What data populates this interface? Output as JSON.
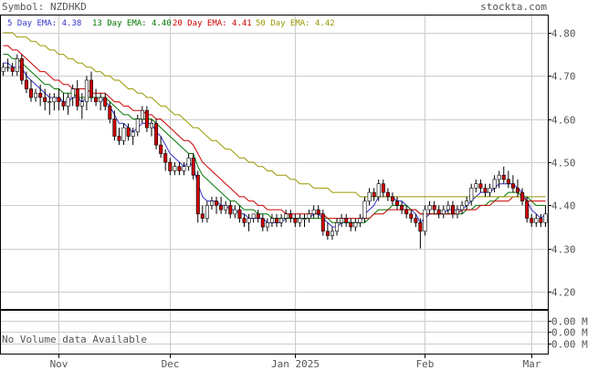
{
  "header": {
    "symbol_label": "Symbol: NZDHKD",
    "site": "stockta.com"
  },
  "legend": [
    {
      "label": "5 Day EMA: 4.38",
      "color": "#3333cc"
    },
    {
      "label": "13 Day EMA: 4.40",
      "color": "#007700"
    },
    {
      "label": "20 Day EMA: 4.41",
      "color": "#cc0000"
    },
    {
      "label": "50 Day EMA: 4.42",
      "color": "#999900"
    }
  ],
  "volume": {
    "message": "No Volume data Available",
    "ticks": [
      "0.00 M",
      "0.00 M",
      "0.00 M"
    ]
  },
  "chart_data": {
    "type": "candlestick",
    "title": "NZDHKD",
    "y_ticks": [
      4.2,
      4.3,
      4.4,
      4.5,
      4.6,
      4.7,
      4.8
    ],
    "ylim": [
      4.16,
      4.84
    ],
    "x_labels": [
      "Nov",
      "Dec",
      "Jan 2025",
      "Feb",
      "Mar"
    ],
    "x_label_index": [
      12,
      36,
      63,
      91,
      114
    ],
    "candle_count": 118,
    "colors": {
      "up": "#ffffff",
      "down": "#cc0000",
      "wick": "#000000"
    },
    "candles": [
      [
        4.71,
        4.73,
        4.7,
        4.72
      ],
      [
        4.72,
        4.74,
        4.71,
        4.72
      ],
      [
        4.72,
        4.73,
        4.7,
        4.71
      ],
      [
        4.71,
        4.75,
        4.7,
        4.74
      ],
      [
        4.74,
        4.75,
        4.68,
        4.69
      ],
      [
        4.69,
        4.71,
        4.66,
        4.67
      ],
      [
        4.67,
        4.69,
        4.64,
        4.65
      ],
      [
        4.65,
        4.67,
        4.64,
        4.66
      ],
      [
        4.66,
        4.68,
        4.63,
        4.65
      ],
      [
        4.65,
        4.67,
        4.62,
        4.64
      ],
      [
        4.64,
        4.66,
        4.61,
        4.64
      ],
      [
        4.64,
        4.66,
        4.62,
        4.65
      ],
      [
        4.65,
        4.67,
        4.62,
        4.64
      ],
      [
        4.64,
        4.66,
        4.62,
        4.63
      ],
      [
        4.63,
        4.66,
        4.61,
        4.65
      ],
      [
        4.65,
        4.68,
        4.63,
        4.67
      ],
      [
        4.67,
        4.69,
        4.62,
        4.63
      ],
      [
        4.63,
        4.66,
        4.6,
        4.64
      ],
      [
        4.64,
        4.7,
        4.62,
        4.69
      ],
      [
        4.69,
        4.71,
        4.64,
        4.65
      ],
      [
        4.65,
        4.67,
        4.63,
        4.64
      ],
      [
        4.64,
        4.66,
        4.62,
        4.65
      ],
      [
        4.65,
        4.66,
        4.62,
        4.63
      ],
      [
        4.63,
        4.64,
        4.59,
        4.6
      ],
      [
        4.6,
        4.62,
        4.55,
        4.56
      ],
      [
        4.56,
        4.58,
        4.54,
        4.55
      ],
      [
        4.55,
        4.59,
        4.54,
        4.58
      ],
      [
        4.58,
        4.59,
        4.55,
        4.56
      ],
      [
        4.56,
        4.58,
        4.54,
        4.57
      ],
      [
        4.57,
        4.61,
        4.56,
        4.6
      ],
      [
        4.6,
        4.63,
        4.59,
        4.62
      ],
      [
        4.62,
        4.63,
        4.57,
        4.58
      ],
      [
        4.58,
        4.6,
        4.56,
        4.59
      ],
      [
        4.59,
        4.6,
        4.53,
        4.54
      ],
      [
        4.54,
        4.56,
        4.51,
        4.52
      ],
      [
        4.52,
        4.53,
        4.48,
        4.5
      ],
      [
        4.5,
        4.51,
        4.47,
        4.48
      ],
      [
        4.48,
        4.5,
        4.47,
        4.49
      ],
      [
        4.49,
        4.5,
        4.47,
        4.48
      ],
      [
        4.48,
        4.5,
        4.47,
        4.49
      ],
      [
        4.49,
        4.52,
        4.48,
        4.51
      ],
      [
        4.51,
        4.52,
        4.46,
        4.47
      ],
      [
        4.47,
        4.48,
        4.36,
        4.38
      ],
      [
        4.38,
        4.4,
        4.36,
        4.37
      ],
      [
        4.37,
        4.41,
        4.36,
        4.4
      ],
      [
        4.4,
        4.42,
        4.39,
        4.41
      ],
      [
        4.41,
        4.42,
        4.38,
        4.4
      ],
      [
        4.4,
        4.42,
        4.38,
        4.39
      ],
      [
        4.39,
        4.41,
        4.38,
        4.4
      ],
      [
        4.4,
        4.41,
        4.37,
        4.38
      ],
      [
        4.38,
        4.4,
        4.37,
        4.39
      ],
      [
        4.39,
        4.4,
        4.36,
        4.37
      ],
      [
        4.37,
        4.38,
        4.35,
        4.36
      ],
      [
        4.36,
        4.38,
        4.34,
        4.37
      ],
      [
        4.37,
        4.38,
        4.36,
        4.38
      ],
      [
        4.38,
        4.39,
        4.36,
        4.37
      ],
      [
        4.37,
        4.38,
        4.34,
        4.35
      ],
      [
        4.35,
        4.37,
        4.34,
        4.36
      ],
      [
        4.36,
        4.38,
        4.35,
        4.37
      ],
      [
        4.37,
        4.38,
        4.35,
        4.36
      ],
      [
        4.36,
        4.38,
        4.35,
        4.37
      ],
      [
        4.37,
        4.39,
        4.36,
        4.38
      ],
      [
        4.38,
        4.39,
        4.36,
        4.37
      ],
      [
        4.37,
        4.38,
        4.35,
        4.36
      ],
      [
        4.36,
        4.38,
        4.35,
        4.37
      ],
      [
        4.37,
        4.38,
        4.35,
        4.37
      ],
      [
        4.37,
        4.39,
        4.36,
        4.38
      ],
      [
        4.38,
        4.4,
        4.37,
        4.39
      ],
      [
        4.39,
        4.4,
        4.37,
        4.38
      ],
      [
        4.38,
        4.39,
        4.33,
        4.34
      ],
      [
        4.34,
        4.36,
        4.32,
        4.33
      ],
      [
        4.33,
        4.35,
        4.32,
        4.34
      ],
      [
        4.34,
        4.37,
        4.33,
        4.36
      ],
      [
        4.36,
        4.38,
        4.35,
        4.37
      ],
      [
        4.37,
        4.38,
        4.35,
        4.36
      ],
      [
        4.36,
        4.37,
        4.34,
        4.35
      ],
      [
        4.35,
        4.37,
        4.34,
        4.36
      ],
      [
        4.36,
        4.38,
        4.35,
        4.37
      ],
      [
        4.37,
        4.42,
        4.36,
        4.41
      ],
      [
        4.41,
        4.44,
        4.4,
        4.43
      ],
      [
        4.43,
        4.44,
        4.41,
        4.42
      ],
      [
        4.42,
        4.46,
        4.41,
        4.45
      ],
      [
        4.45,
        4.46,
        4.42,
        4.43
      ],
      [
        4.43,
        4.44,
        4.41,
        4.42
      ],
      [
        4.42,
        4.43,
        4.4,
        4.41
      ],
      [
        4.41,
        4.42,
        4.39,
        4.4
      ],
      [
        4.4,
        4.41,
        4.38,
        4.39
      ],
      [
        4.39,
        4.4,
        4.37,
        4.38
      ],
      [
        4.38,
        4.39,
        4.36,
        4.37
      ],
      [
        4.37,
        4.38,
        4.35,
        4.36
      ],
      [
        4.36,
        4.37,
        4.3,
        4.34
      ],
      [
        4.34,
        4.4,
        4.33,
        4.39
      ],
      [
        4.39,
        4.41,
        4.38,
        4.4
      ],
      [
        4.4,
        4.41,
        4.38,
        4.39
      ],
      [
        4.39,
        4.4,
        4.37,
        4.38
      ],
      [
        4.38,
        4.4,
        4.37,
        4.39
      ],
      [
        4.39,
        4.41,
        4.38,
        4.4
      ],
      [
        4.4,
        4.41,
        4.37,
        4.38
      ],
      [
        4.38,
        4.4,
        4.37,
        4.39
      ],
      [
        4.39,
        4.41,
        4.38,
        4.4
      ],
      [
        4.4,
        4.42,
        4.39,
        4.41
      ],
      [
        4.41,
        4.45,
        4.4,
        4.44
      ],
      [
        4.44,
        4.46,
        4.43,
        4.45
      ],
      [
        4.45,
        4.46,
        4.43,
        4.44
      ],
      [
        4.44,
        4.45,
        4.42,
        4.43
      ],
      [
        4.43,
        4.45,
        4.42,
        4.44
      ],
      [
        4.44,
        4.47,
        4.43,
        4.46
      ],
      [
        4.46,
        4.48,
        4.44,
        4.47
      ],
      [
        4.47,
        4.49,
        4.45,
        4.46
      ],
      [
        4.46,
        4.48,
        4.44,
        4.45
      ],
      [
        4.45,
        4.47,
        4.43,
        4.44
      ],
      [
        4.44,
        4.46,
        4.42,
        4.43
      ],
      [
        4.43,
        4.44,
        4.4,
        4.41
      ],
      [
        4.41,
        4.42,
        4.36,
        4.37
      ],
      [
        4.37,
        4.38,
        4.35,
        4.36
      ],
      [
        4.36,
        4.38,
        4.35,
        4.37
      ],
      [
        4.37,
        4.38,
        4.35,
        4.36
      ],
      [
        4.36,
        4.4,
        4.35,
        4.38
      ]
    ],
    "series": [
      {
        "name": "5 Day EMA",
        "color": "#3333cc",
        "values": [
          4.73,
          4.73,
          4.72,
          4.72,
          4.72,
          4.7,
          4.69,
          4.68,
          4.67,
          4.66,
          4.65,
          4.65,
          4.65,
          4.64,
          4.64,
          4.65,
          4.65,
          4.64,
          4.65,
          4.65,
          4.65,
          4.65,
          4.64,
          4.63,
          4.61,
          4.59,
          4.59,
          4.58,
          4.57,
          4.58,
          4.59,
          4.59,
          4.59,
          4.57,
          4.56,
          4.54,
          4.52,
          4.51,
          4.5,
          4.49,
          4.5,
          4.49,
          4.45,
          4.42,
          4.41,
          4.41,
          4.41,
          4.4,
          4.4,
          4.39,
          4.39,
          4.38,
          4.38,
          4.37,
          4.37,
          4.37,
          4.37,
          4.36,
          4.36,
          4.36,
          4.36,
          4.37,
          4.37,
          4.37,
          4.37,
          4.37,
          4.37,
          4.38,
          4.38,
          4.37,
          4.36,
          4.35,
          4.35,
          4.36,
          4.36,
          4.36,
          4.36,
          4.36,
          4.38,
          4.39,
          4.4,
          4.42,
          4.42,
          4.42,
          4.42,
          4.41,
          4.41,
          4.4,
          4.39,
          4.38,
          4.36,
          4.37,
          4.38,
          4.38,
          4.38,
          4.38,
          4.39,
          4.39,
          4.39,
          4.39,
          4.4,
          4.41,
          4.42,
          4.43,
          4.43,
          4.43,
          4.44,
          4.45,
          4.45,
          4.45,
          4.45,
          4.44,
          4.43,
          4.41,
          4.39,
          4.38,
          4.37,
          4.38
        ]
      },
      {
        "name": "13 Day EMA",
        "color": "#007700",
        "values": [
          4.75,
          4.75,
          4.74,
          4.74,
          4.73,
          4.72,
          4.71,
          4.7,
          4.69,
          4.68,
          4.68,
          4.67,
          4.67,
          4.66,
          4.66,
          4.66,
          4.65,
          4.65,
          4.65,
          4.65,
          4.65,
          4.65,
          4.65,
          4.64,
          4.63,
          4.62,
          4.61,
          4.61,
          4.6,
          4.6,
          4.6,
          4.6,
          4.6,
          4.59,
          4.58,
          4.57,
          4.56,
          4.55,
          4.54,
          4.53,
          4.52,
          4.52,
          4.49,
          4.47,
          4.46,
          4.45,
          4.44,
          4.43,
          4.42,
          4.41,
          4.41,
          4.4,
          4.39,
          4.39,
          4.39,
          4.38,
          4.38,
          4.38,
          4.37,
          4.37,
          4.37,
          4.37,
          4.37,
          4.37,
          4.37,
          4.37,
          4.37,
          4.37,
          4.37,
          4.37,
          4.37,
          4.36,
          4.36,
          4.36,
          4.36,
          4.36,
          4.36,
          4.36,
          4.36,
          4.37,
          4.38,
          4.39,
          4.39,
          4.39,
          4.4,
          4.4,
          4.4,
          4.4,
          4.39,
          4.39,
          4.38,
          4.38,
          4.38,
          4.38,
          4.38,
          4.38,
          4.38,
          4.38,
          4.38,
          4.38,
          4.39,
          4.39,
          4.4,
          4.4,
          4.4,
          4.41,
          4.41,
          4.42,
          4.42,
          4.43,
          4.43,
          4.43,
          4.42,
          4.42,
          4.41,
          4.4,
          4.4,
          4.4
        ]
      },
      {
        "name": "20 Day EMA",
        "color": "#cc0000",
        "values": [
          4.77,
          4.77,
          4.76,
          4.76,
          4.75,
          4.74,
          4.73,
          4.72,
          4.71,
          4.71,
          4.7,
          4.69,
          4.69,
          4.68,
          4.68,
          4.67,
          4.67,
          4.67,
          4.67,
          4.66,
          4.66,
          4.66,
          4.66,
          4.65,
          4.64,
          4.64,
          4.63,
          4.63,
          4.62,
          4.62,
          4.62,
          4.61,
          4.61,
          4.6,
          4.6,
          4.59,
          4.58,
          4.57,
          4.56,
          4.55,
          4.55,
          4.54,
          4.52,
          4.5,
          4.49,
          4.48,
          4.47,
          4.46,
          4.45,
          4.44,
          4.43,
          4.42,
          4.42,
          4.41,
          4.41,
          4.4,
          4.4,
          4.39,
          4.39,
          4.39,
          4.39,
          4.38,
          4.38,
          4.38,
          4.38,
          4.38,
          4.38,
          4.38,
          4.38,
          4.38,
          4.37,
          4.37,
          4.37,
          4.37,
          4.37,
          4.37,
          4.37,
          4.37,
          4.37,
          4.37,
          4.38,
          4.38,
          4.38,
          4.39,
          4.39,
          4.39,
          4.39,
          4.39,
          4.39,
          4.39,
          4.38,
          4.38,
          4.38,
          4.38,
          4.38,
          4.38,
          4.38,
          4.38,
          4.38,
          4.39,
          4.39,
          4.39,
          4.39,
          4.4,
          4.4,
          4.4,
          4.41,
          4.41,
          4.41,
          4.41,
          4.42,
          4.42,
          4.42,
          4.41,
          4.41,
          4.41,
          4.41,
          4.41
        ]
      },
      {
        "name": "50 Day EMA",
        "color": "#999900",
        "values": [
          4.8,
          4.8,
          4.8,
          4.79,
          4.79,
          4.79,
          4.78,
          4.78,
          4.77,
          4.77,
          4.76,
          4.76,
          4.75,
          4.75,
          4.74,
          4.74,
          4.73,
          4.73,
          4.72,
          4.72,
          4.71,
          4.71,
          4.7,
          4.7,
          4.69,
          4.69,
          4.68,
          4.67,
          4.67,
          4.66,
          4.66,
          4.65,
          4.65,
          4.64,
          4.63,
          4.63,
          4.62,
          4.61,
          4.61,
          4.6,
          4.59,
          4.58,
          4.58,
          4.57,
          4.56,
          4.55,
          4.55,
          4.54,
          4.53,
          4.53,
          4.52,
          4.51,
          4.51,
          4.5,
          4.5,
          4.49,
          4.49,
          4.48,
          4.48,
          4.47,
          4.47,
          4.47,
          4.46,
          4.46,
          4.45,
          4.45,
          4.45,
          4.44,
          4.44,
          4.44,
          4.44,
          4.43,
          4.43,
          4.43,
          4.43,
          4.43,
          4.43,
          4.42,
          4.42,
          4.42,
          4.42,
          4.42,
          4.42,
          4.42,
          4.42,
          4.42,
          4.42,
          4.42,
          4.42,
          4.42,
          4.42,
          4.42,
          4.42,
          4.42,
          4.42,
          4.42,
          4.42,
          4.42,
          4.42,
          4.42,
          4.42,
          4.42,
          4.42,
          4.42,
          4.42,
          4.42,
          4.42,
          4.42,
          4.42,
          4.42,
          4.42,
          4.42,
          4.42,
          4.42,
          4.42,
          4.42,
          4.42,
          4.42
        ]
      }
    ]
  }
}
